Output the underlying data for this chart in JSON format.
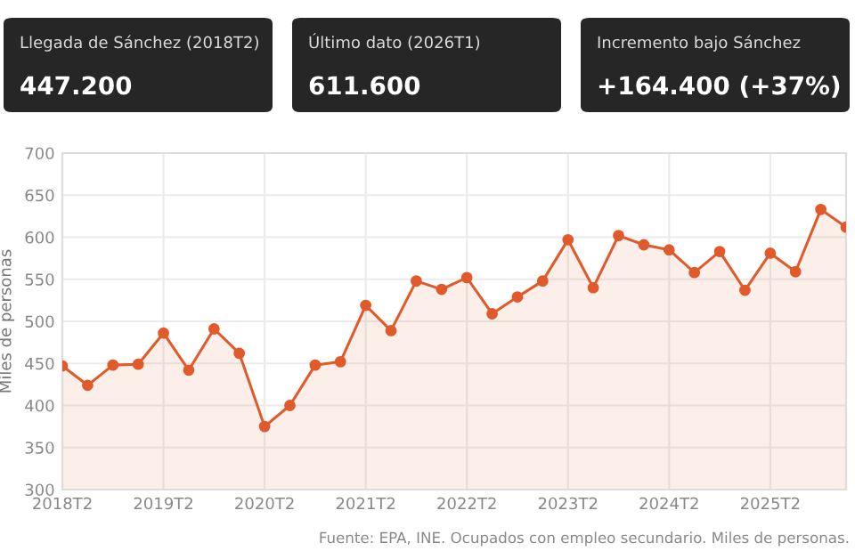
{
  "chart_data": {
    "type": "area",
    "categories": [
      "2018T2",
      null,
      null,
      null,
      "2019T2",
      null,
      null,
      null,
      "2020T2",
      null,
      null,
      null,
      "2021T2",
      null,
      null,
      null,
      "2022T2",
      null,
      null,
      null,
      "2023T2",
      null,
      null,
      null,
      "2024T2",
      null,
      null,
      null,
      "2025T2",
      null,
      null,
      null
    ],
    "series": [
      {
        "color": "#e05a2b",
        "values": [
          447,
          424,
          448,
          449,
          486,
          442,
          491,
          462,
          375,
          400,
          448,
          452,
          519,
          489,
          548,
          538,
          552,
          509,
          529,
          548,
          597,
          540,
          602,
          591,
          585,
          558,
          583,
          537,
          581,
          559,
          633,
          612
        ]
      }
    ],
    "ylabel": "Miles de personas",
    "ylim": [
      300,
      700
    ],
    "yticks": [
      300,
      350,
      400,
      450,
      500,
      550,
      600,
      650,
      700
    ],
    "grid": true,
    "marker": "circle",
    "line_style": "solid",
    "annotations": [
      "Llegada de Sánchez (2018T2)",
      "447.200",
      "Último dato (2026T1)",
      "611.600",
      "Incremento bajo Sánchez",
      "+164.400 (+37%)",
      "Fuente: EPA, INE. Ocupados con empleo secundario. Miles de personas."
    ]
  }
}
